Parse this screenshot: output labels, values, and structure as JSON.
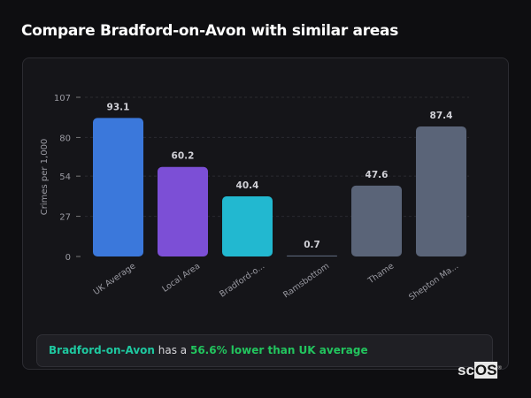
{
  "title": "Compare Bradford-on-Avon with similar areas",
  "chart_data": {
    "type": "bar",
    "categories": [
      "UK Average",
      "Local Area",
      "Bradford-o...",
      "Ramsbottom",
      "Thame",
      "Shepton Ma..."
    ],
    "values": [
      93.1,
      60.2,
      40.4,
      0.7,
      47.6,
      87.4
    ],
    "value_labels": [
      "93.1",
      "60.2",
      "40.4",
      "0.7",
      "47.6",
      "87.4"
    ],
    "colors": [
      "#3b78db",
      "#7c4fd6",
      "#22b8d0",
      "#5a6478",
      "#5a6478",
      "#5a6478"
    ],
    "ylabel": "Crimes per 1,000",
    "xlabel": "",
    "ylim": [
      0,
      107
    ],
    "yticks": [
      0,
      27,
      54,
      80,
      107
    ],
    "grid": true
  },
  "insight": {
    "place": "Bradford-on-Avon",
    "middle": " has a ",
    "highlight": "56.6% lower than UK average"
  },
  "logo": {
    "left": "sc",
    "right": "OS",
    "mark": "®"
  }
}
